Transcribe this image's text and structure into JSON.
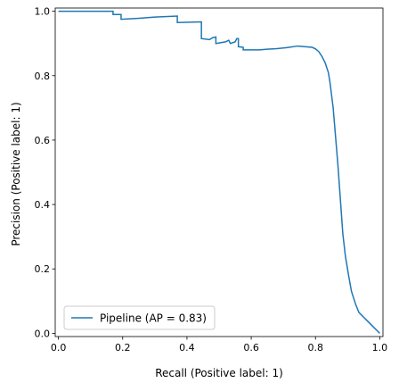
{
  "chart_data": {
    "type": "line",
    "title": "",
    "xlabel": "Recall (Positive label: 1)",
    "ylabel": "Precision (Positive label: 1)",
    "xlim": [
      -0.01,
      1.01
    ],
    "ylim": [
      -0.01,
      1.01
    ],
    "xticks": [
      {
        "value": 0.0,
        "label": "0.0"
      },
      {
        "value": 0.2,
        "label": "0.2"
      },
      {
        "value": 0.4,
        "label": "0.4"
      },
      {
        "value": 0.6,
        "label": "0.6"
      },
      {
        "value": 0.8,
        "label": "0.8"
      },
      {
        "value": 1.0,
        "label": "1.0"
      }
    ],
    "yticks": [
      {
        "value": 0.0,
        "label": "0.0"
      },
      {
        "value": 0.2,
        "label": "0.2"
      },
      {
        "value": 0.4,
        "label": "0.4"
      },
      {
        "value": 0.6,
        "label": "0.6"
      },
      {
        "value": 0.8,
        "label": "0.8"
      },
      {
        "value": 1.0,
        "label": "1.0"
      }
    ],
    "grid": false,
    "legend": {
      "placement": "lower-left",
      "entries": [
        "Pipeline (AP = 0.83)"
      ]
    },
    "series": [
      {
        "name": "Pipeline (AP = 0.83)",
        "color": "#1f77b4",
        "step": true,
        "points": [
          [
            0.0,
            1.0
          ],
          [
            0.17,
            1.0
          ],
          [
            0.17,
            0.99
          ],
          [
            0.195,
            0.99
          ],
          [
            0.195,
            0.975
          ],
          [
            0.25,
            0.978
          ],
          [
            0.3,
            0.982
          ],
          [
            0.37,
            0.985
          ],
          [
            0.37,
            0.965
          ],
          [
            0.445,
            0.967
          ],
          [
            0.445,
            0.915
          ],
          [
            0.47,
            0.912
          ],
          [
            0.48,
            0.918
          ],
          [
            0.49,
            0.92
          ],
          [
            0.49,
            0.9
          ],
          [
            0.52,
            0.905
          ],
          [
            0.53,
            0.91
          ],
          [
            0.535,
            0.9
          ],
          [
            0.55,
            0.905
          ],
          [
            0.555,
            0.915
          ],
          [
            0.56,
            0.915
          ],
          [
            0.56,
            0.89
          ],
          [
            0.575,
            0.888
          ],
          [
            0.575,
            0.88
          ],
          [
            0.6,
            0.88
          ],
          [
            0.625,
            0.88
          ],
          [
            0.65,
            0.882
          ],
          [
            0.68,
            0.884
          ],
          [
            0.71,
            0.887
          ],
          [
            0.745,
            0.892
          ],
          [
            0.765,
            0.89
          ],
          [
            0.79,
            0.888
          ],
          [
            0.8,
            0.883
          ],
          [
            0.81,
            0.875
          ],
          [
            0.82,
            0.86
          ],
          [
            0.83,
            0.84
          ],
          [
            0.84,
            0.81
          ],
          [
            0.845,
            0.78
          ],
          [
            0.85,
            0.74
          ],
          [
            0.855,
            0.7
          ],
          [
            0.86,
            0.64
          ],
          [
            0.865,
            0.58
          ],
          [
            0.87,
            0.52
          ],
          [
            0.875,
            0.45
          ],
          [
            0.88,
            0.38
          ],
          [
            0.885,
            0.31
          ],
          [
            0.893,
            0.24
          ],
          [
            0.903,
            0.18
          ],
          [
            0.912,
            0.13
          ],
          [
            0.925,
            0.09
          ],
          [
            0.935,
            0.065
          ],
          [
            0.95,
            0.05
          ],
          [
            0.96,
            0.04
          ],
          [
            0.97,
            0.03
          ],
          [
            0.98,
            0.02
          ],
          [
            0.99,
            0.01
          ],
          [
            1.0,
            0.0
          ]
        ]
      }
    ]
  }
}
